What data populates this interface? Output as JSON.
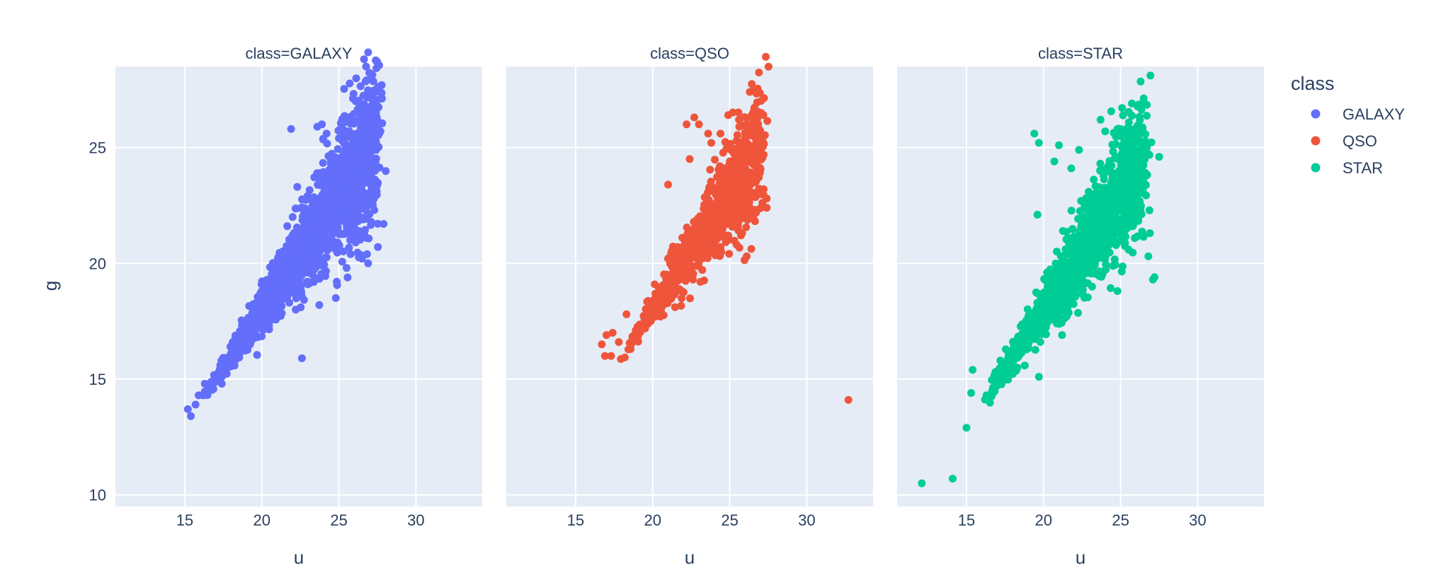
{
  "chart_data": {
    "type": "scatter",
    "facet_by": "class",
    "xlabel": "u",
    "ylabel": "g",
    "xlim": [
      10.5,
      34.3
    ],
    "ylim": [
      9.5,
      28.5
    ],
    "xticks": [
      15,
      20,
      25,
      30
    ],
    "yticks": [
      10,
      15,
      20,
      25
    ],
    "grid": true,
    "legend": {
      "title": "class",
      "placement": "right",
      "entries": [
        "GALAXY",
        "QSO",
        "STAR"
      ]
    },
    "facets": [
      {
        "title": "class=GALAXY",
        "name": "GALAXY",
        "color": "#636efa",
        "cloud": {
          "x_min": 16.5,
          "x_max": 27.5,
          "spread_low": 0.35,
          "spread_high": 4.2,
          "count": 1600
        },
        "points": [
          [
            15.2,
            13.7
          ],
          [
            15.4,
            13.4
          ],
          [
            15.7,
            13.9
          ],
          [
            15.9,
            14.3
          ],
          [
            16.2,
            14.3
          ],
          [
            16.3,
            14.8
          ],
          [
            16.8,
            14.6
          ],
          [
            17.4,
            14.8
          ],
          [
            22.6,
            15.9
          ],
          [
            24.8,
            18.5
          ],
          [
            23.6,
            25.9
          ],
          [
            23.9,
            26.0
          ],
          [
            25.4,
            26.1
          ],
          [
            26.5,
            26.1
          ],
          [
            21.9,
            25.8
          ],
          [
            24.2,
            25.6
          ],
          [
            26.7,
            25.0
          ],
          [
            27.5,
            23.4
          ],
          [
            27.9,
            21.7
          ],
          [
            26.9,
            20.0
          ],
          [
            26.5,
            20.2
          ],
          [
            25.5,
            19.8
          ],
          [
            23.0,
            19.2
          ],
          [
            24.1,
            19.6
          ],
          [
            22.3,
            23.3
          ],
          [
            22.0,
            22.0
          ],
          [
            25.0,
            25.4
          ],
          [
            27.3,
            22.3
          ]
        ]
      },
      {
        "title": "class=QSO",
        "name": "QSO",
        "color": "#ef553b",
        "cloud": {
          "x_min": 18.2,
          "x_max": 27.0,
          "spread_low": 0.4,
          "spread_high": 3.2,
          "count": 1000
        },
        "points": [
          [
            16.7,
            16.5
          ],
          [
            16.9,
            16.0
          ],
          [
            17.3,
            16.0
          ],
          [
            17.0,
            16.9
          ],
          [
            17.4,
            17.0
          ],
          [
            17.8,
            16.6
          ],
          [
            18.3,
            17.8
          ],
          [
            20.5,
            17.7
          ],
          [
            20.0,
            18.3
          ],
          [
            32.7,
            14.1
          ],
          [
            26.3,
            27.4
          ],
          [
            22.2,
            26.0
          ],
          [
            22.7,
            26.3
          ],
          [
            24.9,
            26.4
          ],
          [
            25.6,
            26.2
          ],
          [
            26.7,
            25.4
          ],
          [
            27.4,
            22.4
          ],
          [
            27.4,
            22.8
          ],
          [
            25.8,
            21.3
          ],
          [
            26.1,
            20.3
          ],
          [
            24.1,
            20.5
          ],
          [
            23.1,
            19.2
          ],
          [
            21.9,
            19.6
          ],
          [
            21.0,
            20.2
          ],
          [
            23.0,
            26.0
          ],
          [
            23.6,
            25.6
          ],
          [
            23.8,
            25.2
          ],
          [
            24.4,
            25.6
          ],
          [
            21.0,
            23.4
          ],
          [
            22.4,
            24.5
          ],
          [
            27.2,
            23.2
          ],
          [
            26.6,
            23.5
          ]
        ]
      },
      {
        "title": "class=STAR",
        "name": "STAR",
        "color": "#00cc96",
        "cloud": {
          "x_min": 16.2,
          "x_max": 26.5,
          "spread_low": 0.5,
          "spread_high": 3.5,
          "count": 1300
        },
        "points": [
          [
            12.1,
            10.5
          ],
          [
            14.1,
            10.7
          ],
          [
            15.0,
            12.9
          ],
          [
            15.3,
            14.4
          ],
          [
            15.4,
            15.4
          ],
          [
            16.3,
            14.3
          ],
          [
            17.2,
            15.8
          ],
          [
            17.8,
            15.5
          ],
          [
            19.7,
            15.1
          ],
          [
            24.8,
            18.8
          ],
          [
            21.2,
            16.9
          ],
          [
            19.4,
            25.6
          ],
          [
            19.7,
            25.2
          ],
          [
            21.0,
            25.1
          ],
          [
            22.3,
            24.9
          ],
          [
            23.7,
            26.2
          ],
          [
            24.0,
            25.7
          ],
          [
            24.8,
            25.8
          ],
          [
            25.0,
            25.8
          ],
          [
            25.9,
            25.2
          ],
          [
            26.7,
            25.0
          ],
          [
            27.5,
            24.6
          ],
          [
            20.7,
            24.4
          ],
          [
            26.4,
            23.2
          ],
          [
            26.3,
            22.2
          ],
          [
            26.9,
            21.3
          ],
          [
            27.2,
            19.4
          ],
          [
            27.1,
            19.3
          ],
          [
            26.8,
            20.3
          ],
          [
            19.6,
            22.1
          ],
          [
            21.8,
            24.1
          ],
          [
            25.1,
            25.0
          ],
          [
            25.4,
            24.5
          ]
        ]
      }
    ]
  }
}
